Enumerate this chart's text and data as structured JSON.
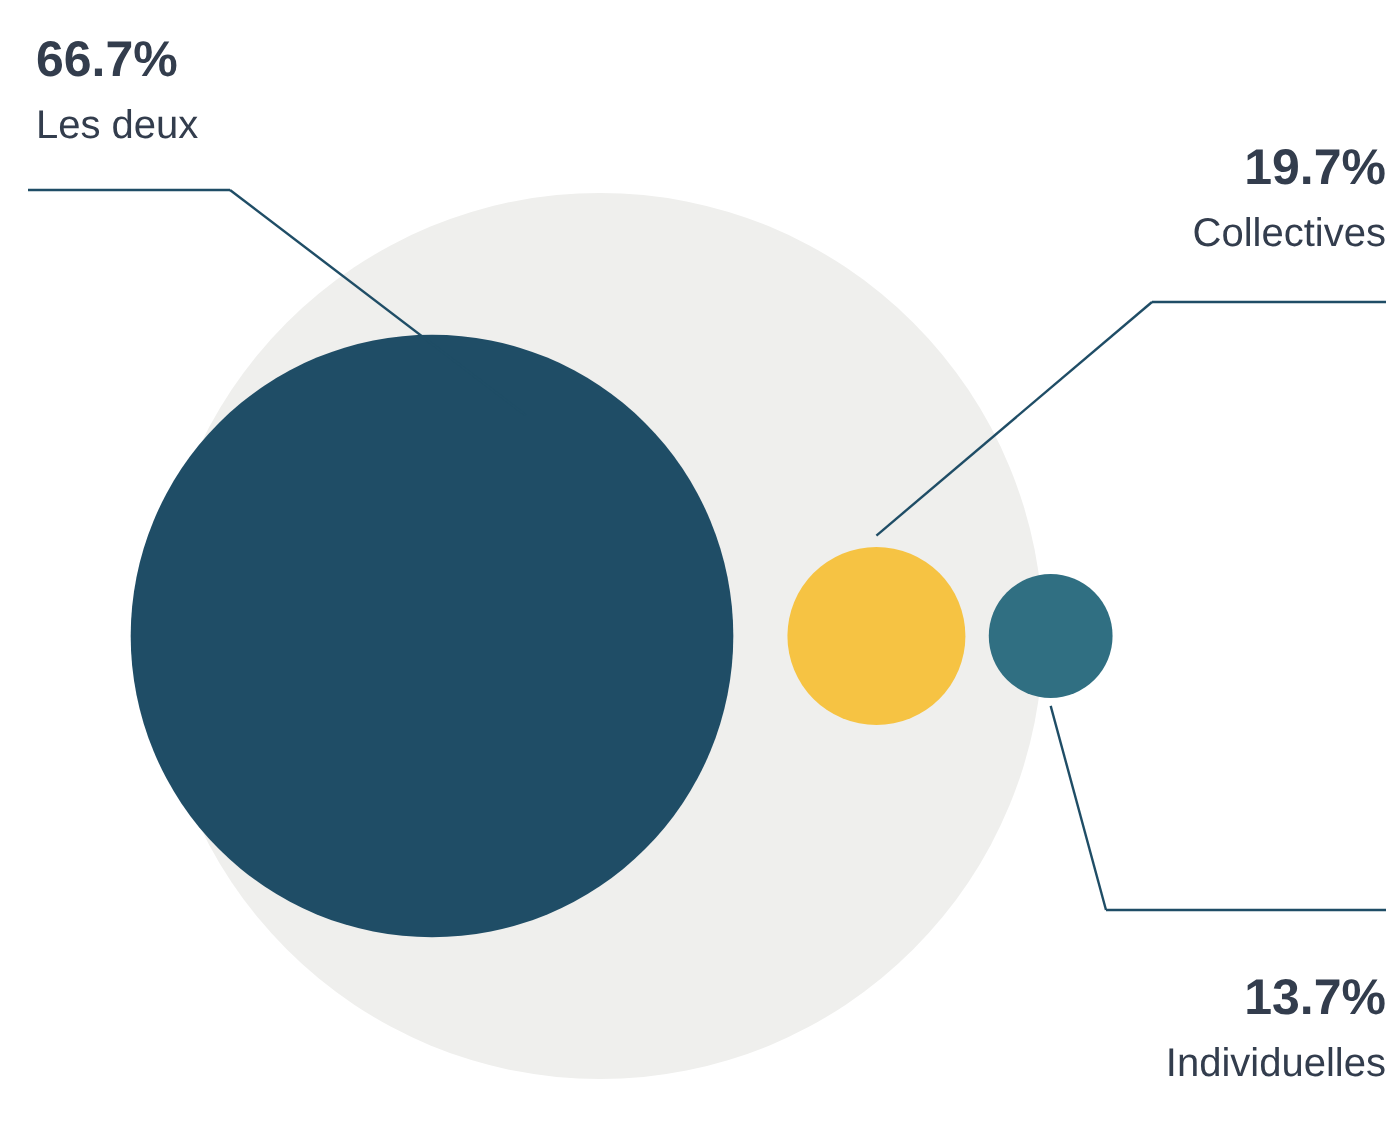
{
  "chart_data": {
    "type": "other",
    "categories": [
      "Les deux",
      "Collectives",
      "Individuelles"
    ],
    "values": [
      66.7,
      19.7,
      13.7
    ],
    "value_labels": [
      "66.7%",
      "19.7%",
      "13.7%"
    ],
    "colors": [
      "#1f4d66",
      "#f6c343",
      "#306f82"
    ]
  }
}
